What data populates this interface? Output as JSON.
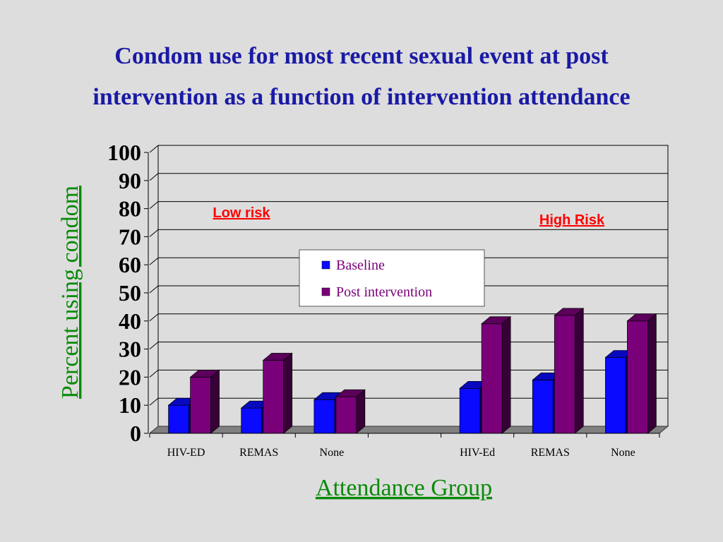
{
  "chart_data": {
    "type": "bar",
    "title": [
      "Condom use for most recent sexual event at post",
      "intervention as a function of intervention attendance"
    ],
    "xlabel": "Attendance Group",
    "ylabel": "Percent using condom",
    "ylim": [
      0,
      100
    ],
    "yticks": [
      0,
      10,
      20,
      30,
      40,
      50,
      60,
      70,
      80,
      90,
      100
    ],
    "categories": [
      "HIV-ED",
      "REMAS",
      "None",
      "",
      "HIV-Ed",
      "REMAS",
      "None"
    ],
    "series": [
      {
        "name": "Baseline",
        "color": "#0a0aff",
        "values": [
          10,
          9,
          12,
          null,
          16,
          19,
          27
        ]
      },
      {
        "name": "Post intervention",
        "color": "#7a007a",
        "values": [
          20,
          26,
          13,
          null,
          39,
          42,
          40
        ]
      }
    ],
    "annotations": [
      {
        "text": "Low risk",
        "color": "#ff0000"
      },
      {
        "text": "High Risk",
        "color": "#ff0000"
      }
    ],
    "legend": "center",
    "grid": true
  }
}
